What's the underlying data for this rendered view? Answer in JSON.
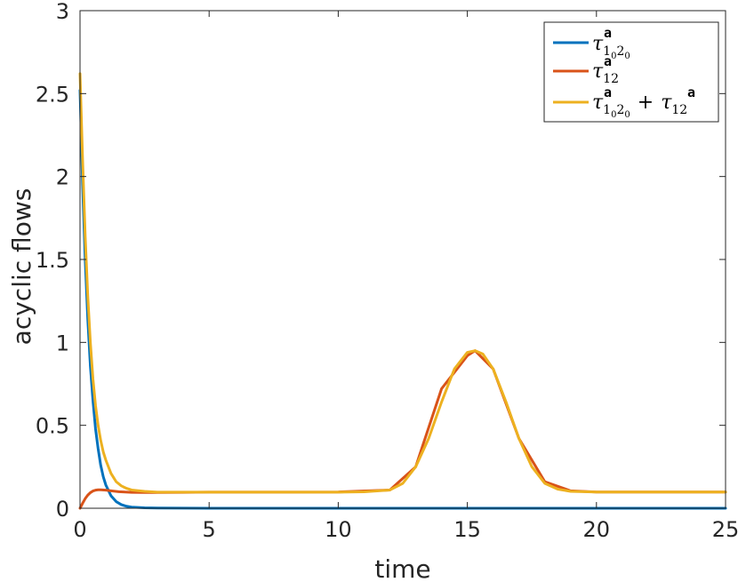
{
  "chart_data": {
    "type": "line",
    "xlabel": "time",
    "ylabel": "acyclic  flows",
    "xlim": [
      0,
      25
    ],
    "ylim": [
      0,
      3
    ],
    "xticks": [
      0,
      5,
      10,
      15,
      20,
      25
    ],
    "yticks": [
      0,
      0.5,
      1,
      1.5,
      2,
      2.5,
      3
    ],
    "xtick_labels": [
      "0",
      "5",
      "10",
      "15",
      "20",
      "25"
    ],
    "ytick_labels": [
      "0",
      "0.5",
      "1",
      "1.5",
      "2",
      "2.5",
      "3"
    ],
    "grid": false,
    "legend_position": "top-right",
    "series": [
      {
        "name": "τ^a_{1_0 2_0}",
        "color": "#0072BD",
        "x": [
          0,
          0.1,
          0.2,
          0.3,
          0.4,
          0.5,
          0.6,
          0.7,
          0.8,
          0.9,
          1.0,
          1.2,
          1.4,
          1.6,
          1.8,
          2.0,
          2.5,
          3,
          4,
          5,
          6,
          8,
          10,
          12,
          14,
          16,
          18,
          20,
          22,
          25
        ],
        "y": [
          2.52,
          1.95,
          1.5,
          1.14,
          0.86,
          0.65,
          0.48,
          0.36,
          0.26,
          0.19,
          0.14,
          0.075,
          0.04,
          0.022,
          0.012,
          0.007,
          0.003,
          0.0015,
          0.0005,
          0.0002,
          0.0001,
          0,
          0,
          0,
          0,
          0,
          0,
          0,
          0,
          0
        ]
      },
      {
        "name": "τ^a_{12}",
        "color": "#D95319",
        "x": [
          0,
          0.1,
          0.2,
          0.3,
          0.4,
          0.5,
          0.6,
          0.7,
          0.8,
          1.0,
          1.2,
          1.5,
          2,
          2.5,
          3,
          4,
          5,
          6,
          8,
          10,
          12,
          13,
          14,
          15,
          15.3,
          16,
          17,
          18,
          19,
          20,
          22,
          25
        ],
        "y": [
          0.0,
          0.03,
          0.058,
          0.079,
          0.094,
          0.104,
          0.109,
          0.111,
          0.111,
          0.109,
          0.105,
          0.1,
          0.096,
          0.095,
          0.095,
          0.096,
          0.097,
          0.097,
          0.097,
          0.098,
          0.11,
          0.25,
          0.72,
          0.92,
          0.95,
          0.84,
          0.42,
          0.16,
          0.105,
          0.098,
          0.098,
          0.098
        ]
      },
      {
        "name": "τ^a_{1_0 2_0} + τ^a_{12}",
        "color": "#EDB120",
        "x": [
          0,
          0.1,
          0.2,
          0.3,
          0.4,
          0.5,
          0.6,
          0.7,
          0.8,
          0.9,
          1.0,
          1.2,
          1.4,
          1.6,
          1.8,
          2.0,
          2.5,
          3,
          4,
          5,
          6,
          8,
          10,
          11,
          12,
          12.5,
          13,
          13.5,
          14,
          14.5,
          15,
          15.3,
          15.6,
          16,
          16.5,
          17,
          17.5,
          18,
          18.5,
          19,
          20,
          22,
          25
        ],
        "y": [
          2.62,
          2.1,
          1.64,
          1.28,
          1.0,
          0.78,
          0.62,
          0.5,
          0.41,
          0.34,
          0.29,
          0.21,
          0.16,
          0.135,
          0.12,
          0.11,
          0.102,
          0.097,
          0.097,
          0.097,
          0.097,
          0.097,
          0.097,
          0.099,
          0.11,
          0.15,
          0.25,
          0.42,
          0.64,
          0.84,
          0.94,
          0.95,
          0.93,
          0.84,
          0.64,
          0.42,
          0.25,
          0.15,
          0.115,
          0.102,
          0.098,
          0.098,
          0.098
        ]
      }
    ]
  }
}
